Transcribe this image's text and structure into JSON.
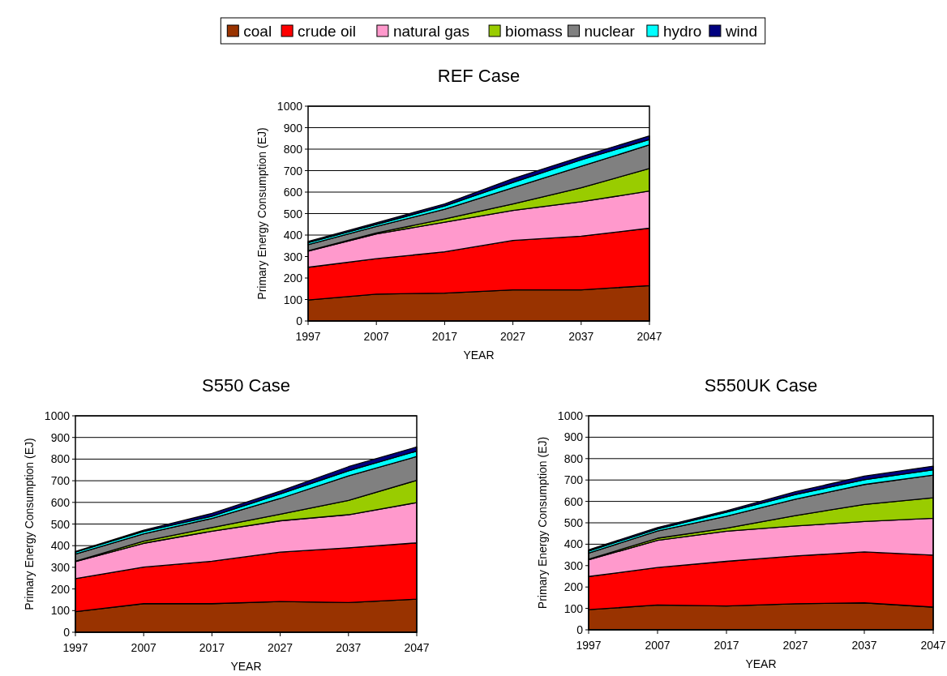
{
  "chart_data": [
    {
      "type": "area",
      "stacked": true,
      "title": "REF Case",
      "xlabel": "YEAR",
      "ylabel": "Primary Energy Consumption (EJ)",
      "x": [
        1997,
        2007,
        2017,
        2027,
        2037,
        2047
      ],
      "xlim": [
        1997,
        2047
      ],
      "xticks": [
        1997,
        2007,
        2017,
        2027,
        2037,
        2047
      ],
      "ylim": [
        0,
        1000
      ],
      "yticks": [
        0,
        100,
        200,
        300,
        400,
        500,
        600,
        700,
        800,
        900,
        1000
      ],
      "grid": "y",
      "legend": "top",
      "series": [
        {
          "name": "coal",
          "color": "#993300",
          "values": [
            98,
            125,
            130,
            145,
            145,
            165
          ]
        },
        {
          "name": "crude oil",
          "color": "#ff0000",
          "values": [
            152,
            165,
            192,
            230,
            250,
            267
          ]
        },
        {
          "name": "natural gas",
          "color": "#ff99cc",
          "values": [
            75,
            115,
            138,
            140,
            160,
            173
          ]
        },
        {
          "name": "biomass",
          "color": "#99cc00",
          "values": [
            2,
            5,
            15,
            30,
            65,
            105
          ]
        },
        {
          "name": "nuclear",
          "color": "#808080",
          "values": [
            28,
            30,
            45,
            75,
            100,
            110
          ]
        },
        {
          "name": "hydro",
          "color": "#00ffff",
          "values": [
            10,
            10,
            15,
            25,
            30,
            25
          ]
        },
        {
          "name": "wind",
          "color": "#000080",
          "values": [
            5,
            7,
            10,
            18,
            15,
            17
          ]
        }
      ]
    },
    {
      "type": "area",
      "stacked": true,
      "title": "S550 Case",
      "xlabel": "YEAR",
      "ylabel": "Primary Energy Consumption (EJ)",
      "x": [
        1997,
        2007,
        2017,
        2027,
        2037,
        2047
      ],
      "xlim": [
        1997,
        2047
      ],
      "xticks": [
        1997,
        2007,
        2017,
        2027,
        2037,
        2047
      ],
      "ylim": [
        0,
        1000
      ],
      "yticks": [
        0,
        100,
        200,
        300,
        400,
        500,
        600,
        700,
        800,
        900,
        1000
      ],
      "grid": "y",
      "series": [
        {
          "name": "coal",
          "color": "#993300",
          "values": [
            95,
            132,
            132,
            142,
            137,
            153
          ]
        },
        {
          "name": "crude oil",
          "color": "#ff0000",
          "values": [
            153,
            169,
            196,
            228,
            253,
            260
          ]
        },
        {
          "name": "natural gas",
          "color": "#ff99cc",
          "values": [
            78,
            110,
            139,
            145,
            153,
            186
          ]
        },
        {
          "name": "biomass",
          "color": "#99cc00",
          "values": [
            2,
            10,
            17,
            30,
            66,
            103
          ]
        },
        {
          "name": "nuclear",
          "color": "#808080",
          "values": [
            33,
            34,
            42,
            73,
            113,
            110
          ]
        },
        {
          "name": "hydro",
          "color": "#00ffff",
          "values": [
            9,
            11,
            10,
            21,
            24,
            25
          ]
        },
        {
          "name": "wind",
          "color": "#000080",
          "values": [
            3,
            5,
            13,
            13,
            19,
            19
          ]
        }
      ]
    },
    {
      "type": "area",
      "stacked": true,
      "title": "S550UK Case",
      "xlabel": "YEAR",
      "ylabel": "Primary Energy Consumption (EJ)",
      "x": [
        1997,
        2007,
        2017,
        2027,
        2037,
        2047
      ],
      "xlim": [
        1997,
        2047
      ],
      "xticks": [
        1997,
        2007,
        2017,
        2027,
        2037,
        2047
      ],
      "ylim": [
        0,
        1000
      ],
      "yticks": [
        0,
        100,
        200,
        300,
        400,
        500,
        600,
        700,
        800,
        900,
        1000
      ],
      "grid": "y",
      "series": [
        {
          "name": "coal",
          "color": "#993300",
          "values": [
            94,
            116,
            111,
            122,
            126,
            106
          ]
        },
        {
          "name": "crude oil",
          "color": "#ff0000",
          "values": [
            155,
            175,
            209,
            223,
            238,
            243
          ]
        },
        {
          "name": "natural gas",
          "color": "#ff99cc",
          "values": [
            78,
            127,
            141,
            140,
            142,
            172
          ]
        },
        {
          "name": "biomass",
          "color": "#99cc00",
          "values": [
            3,
            10,
            14,
            49,
            80,
            96
          ]
        },
        {
          "name": "nuclear",
          "color": "#808080",
          "values": [
            28,
            34,
            56,
            76,
            93,
            106
          ]
        },
        {
          "name": "hydro",
          "color": "#00ffff",
          "values": [
            10,
            9,
            19,
            22,
            22,
            25
          ]
        },
        {
          "name": "wind",
          "color": "#000080",
          "values": [
            6,
            7,
            6,
            13,
            17,
            17
          ]
        }
      ]
    }
  ]
}
